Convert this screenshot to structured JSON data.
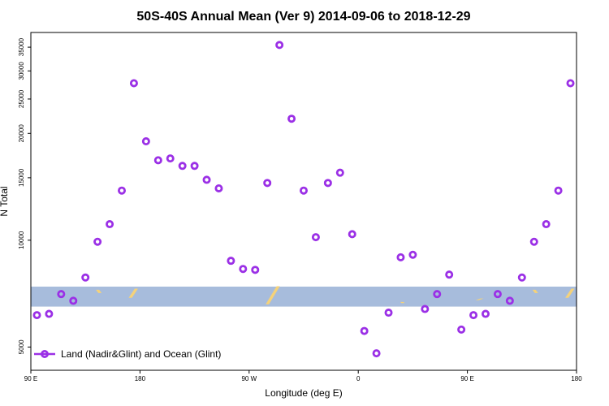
{
  "chart_data": {
    "type": "scatter",
    "title": "50S-40S Annual Mean (Ver 9)   2014-09-06 to 2018-12-29",
    "xlabel": "Longitude (deg E)",
    "ylabel": "N Total",
    "y_scale": "log",
    "xlim": [
      90,
      540
    ],
    "ylim": [
      4300,
      38500
    ],
    "x_ticks": [
      {
        "value": 90,
        "label": "90 E"
      },
      {
        "value": 180,
        "label": "180"
      },
      {
        "value": 270,
        "label": "90 W"
      },
      {
        "value": 360,
        "label": "0"
      },
      {
        "value": 450,
        "label": "90 E"
      },
      {
        "value": 540,
        "label": "180"
      }
    ],
    "y_ticks": [
      {
        "value": 5000,
        "label": "5000"
      },
      {
        "value": 10000,
        "label": "10000"
      },
      {
        "value": 15000,
        "label": "15000"
      },
      {
        "value": 20000,
        "label": "20000"
      },
      {
        "value": 25000,
        "label": "25000"
      },
      {
        "value": 30000,
        "label": "30000"
      },
      {
        "value": 35000,
        "label": "35000"
      }
    ],
    "latitude_band": {
      "color": "#a7bcdc",
      "y_range": [
        6500,
        7400
      ]
    },
    "land_color": "#f5d27a",
    "land_patches": [
      {
        "x": [
          145,
          147
        ],
        "y": [
          7250,
          7100
        ]
      },
      {
        "x": [
          172,
          177
        ],
        "y": [
          6880,
          7300
        ]
      },
      {
        "x": [
          285,
          294
        ],
        "y": [
          6600,
          7420
        ]
      },
      {
        "x": [
          396,
          397
        ],
        "y": [
          6700,
          6650
        ]
      },
      {
        "x": [
          458,
          462
        ],
        "y": [
          6780,
          6850
        ]
      },
      {
        "x": [
          505,
          507
        ],
        "y": [
          7250,
          7100
        ]
      },
      {
        "x": [
          532,
          537
        ],
        "y": [
          6880,
          7300
        ]
      }
    ],
    "series": [
      {
        "name": "Land (Nadir&Glint) and Ocean (Glint)",
        "color": "#9b30e6",
        "x": [
          95,
          105,
          115,
          125,
          135,
          145,
          155,
          165,
          175,
          185,
          195,
          205,
          215,
          225,
          235,
          245,
          255,
          265,
          275,
          285,
          295,
          305,
          315,
          325,
          335,
          345,
          355,
          365,
          375,
          385,
          395,
          405,
          415,
          425,
          435,
          445,
          455,
          465,
          475,
          485,
          495,
          505,
          515,
          525,
          535
        ],
        "y": [
          6150,
          6200,
          7050,
          6750,
          7850,
          9900,
          11100,
          13800,
          27700,
          19000,
          16800,
          17000,
          16200,
          16200,
          14800,
          14000,
          8750,
          8300,
          8250,
          14500,
          35500,
          22000,
          13800,
          10200,
          14500,
          15500,
          10400,
          5550,
          4800,
          6250,
          8950,
          9100,
          6400,
          7050,
          8000,
          5600,
          6150,
          6200,
          7050,
          6750,
          7850,
          9900,
          11100,
          13800,
          27700
        ]
      }
    ],
    "legend": {
      "position": "bottom-left"
    },
    "grid": false
  }
}
